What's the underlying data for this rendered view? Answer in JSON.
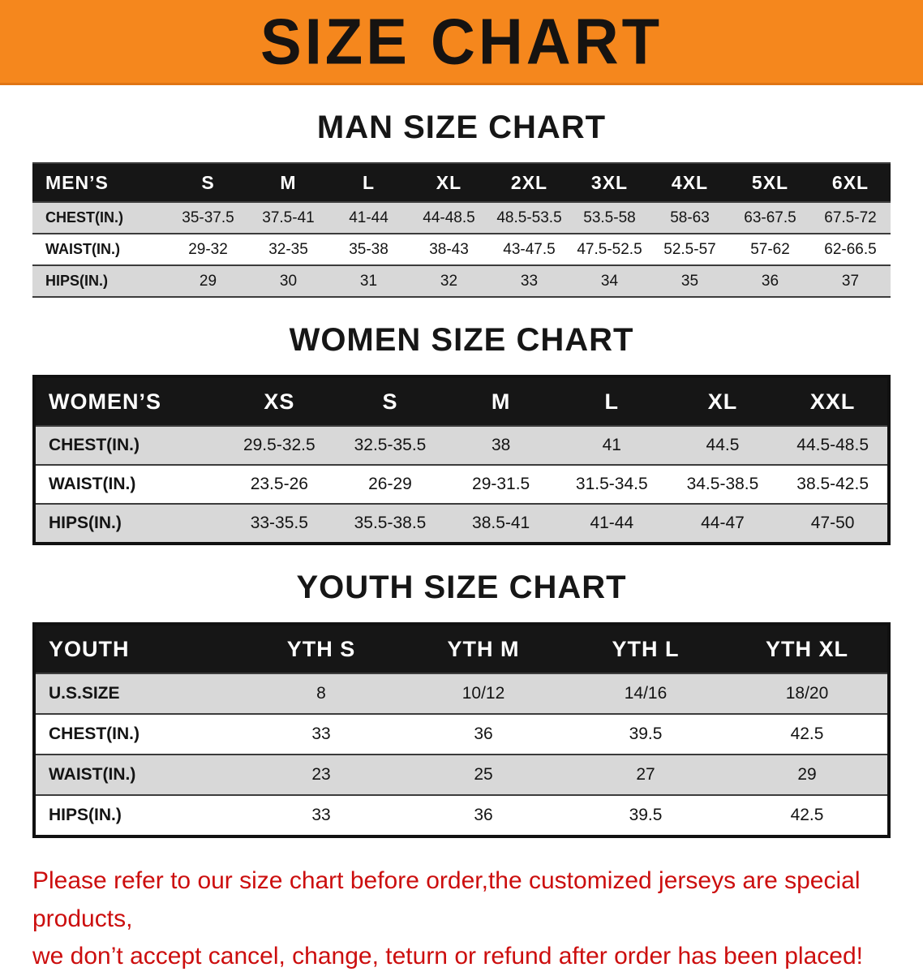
{
  "banner": {
    "title": "SIZE CHART"
  },
  "colors": {
    "banner_bg": "#f5871d",
    "table_header_bg": "#161616",
    "shaded_row_bg": "#d8d8d8",
    "footer_text": "#cc0e0e"
  },
  "sections": {
    "men": {
      "heading": "MAN SIZE CHART",
      "table": {
        "header": [
          "MEN’S",
          "S",
          "M",
          "L",
          "XL",
          "2XL",
          "3XL",
          "4XL",
          "5XL",
          "6XL"
        ],
        "rows": [
          [
            "CHEST(IN.)",
            "35-37.5",
            "37.5-41",
            "41-44",
            "44-48.5",
            "48.5-53.5",
            "53.5-58",
            "58-63",
            "63-67.5",
            "67.5-72"
          ],
          [
            "WAIST(IN.)",
            "29-32",
            "32-35",
            "35-38",
            "38-43",
            "43-47.5",
            "47.5-52.5",
            "52.5-57",
            "57-62",
            "62-66.5"
          ],
          [
            "HIPS(IN.)",
            "29",
            "30",
            "31",
            "32",
            "33",
            "34",
            "35",
            "36",
            "37"
          ]
        ]
      }
    },
    "women": {
      "heading": "WOMEN SIZE CHART",
      "table": {
        "header": [
          "WOMEN’S",
          "XS",
          "S",
          "M",
          "L",
          "XL",
          "XXL"
        ],
        "rows": [
          [
            "CHEST(IN.)",
            "29.5-32.5",
            "32.5-35.5",
            "38",
            "41",
            "44.5",
            "44.5-48.5"
          ],
          [
            "WAIST(IN.)",
            "23.5-26",
            "26-29",
            "29-31.5",
            "31.5-34.5",
            "34.5-38.5",
            "38.5-42.5"
          ],
          [
            "HIPS(IN.)",
            "33-35.5",
            "35.5-38.5",
            "38.5-41",
            "41-44",
            "44-47",
            "47-50"
          ]
        ]
      }
    },
    "youth": {
      "heading": "YOUTH SIZE CHART",
      "table": {
        "header": [
          "YOUTH",
          "YTH S",
          "YTH M",
          "YTH L",
          "YTH XL"
        ],
        "rows": [
          [
            "U.S.SIZE",
            "8",
            "10/12",
            "14/16",
            "18/20"
          ],
          [
            "CHEST(IN.)",
            "33",
            "36",
            "39.5",
            "42.5"
          ],
          [
            "WAIST(IN.)",
            "23",
            "25",
            "27",
            "29"
          ],
          [
            "HIPS(IN.)",
            "33",
            "36",
            "39.5",
            "42.5"
          ]
        ]
      }
    }
  },
  "footer": {
    "line1": "Please refer to our size chart before order,the customized jerseys are special products,",
    "line2": "we don’t accept cancel, change, teturn or refund after order has been placed!"
  }
}
